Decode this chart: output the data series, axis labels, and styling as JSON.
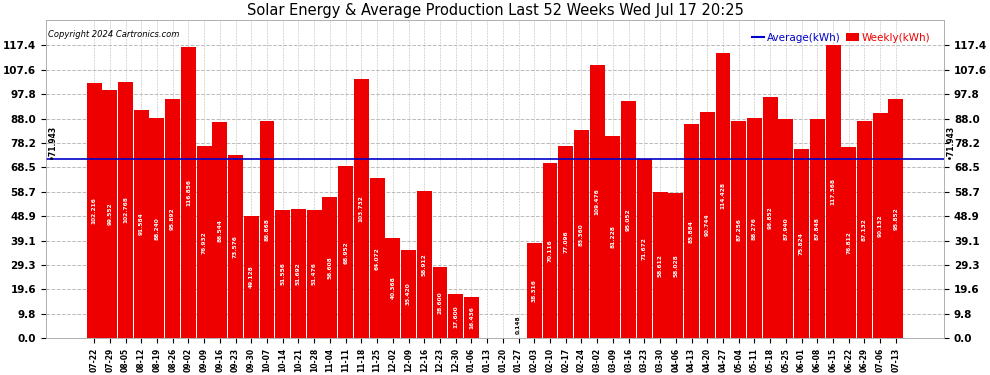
{
  "title": "Solar Energy & Average Production Last 52 Weeks Wed Jul 17 20:25",
  "copyright": "Copyright 2024 Cartronics.com",
  "average_label": "Average(kWh)",
  "weekly_label": "Weekly(kWh)",
  "average_value": 71.943,
  "bar_color": "#ee0000",
  "average_line_color": "#0000cc",
  "background_color": "#ffffff",
  "grid_color": "#bbbbbb",
  "ylim": [
    0,
    127.4
  ],
  "yticks": [
    0.0,
    9.8,
    19.6,
    29.3,
    39.1,
    48.9,
    58.7,
    68.5,
    78.2,
    88.0,
    97.8,
    107.6,
    117.4
  ],
  "categories": [
    "07-22",
    "07-29",
    "08-05",
    "08-12",
    "08-19",
    "08-26",
    "09-02",
    "09-09",
    "09-16",
    "09-23",
    "09-30",
    "10-07",
    "10-14",
    "10-21",
    "10-28",
    "11-04",
    "11-11",
    "11-18",
    "11-25",
    "12-02",
    "12-09",
    "12-16",
    "12-23",
    "12-30",
    "01-06",
    "01-13",
    "01-20",
    "01-27",
    "02-03",
    "02-10",
    "02-17",
    "02-24",
    "03-02",
    "03-09",
    "03-16",
    "03-23",
    "03-30",
    "04-06",
    "04-13",
    "04-20",
    "04-27",
    "05-04",
    "05-11",
    "05-18",
    "05-25",
    "06-01",
    "06-08",
    "06-15",
    "06-22",
    "06-29",
    "07-06",
    "07-13"
  ],
  "values": [
    102.216,
    99.552,
    102.768,
    91.584,
    88.24,
    95.892,
    116.856,
    76.932,
    86.544,
    73.576,
    49.128,
    86.868,
    51.556,
    51.692,
    51.476,
    56.608,
    68.952,
    103.732,
    64.072,
    40.368,
    35.42,
    58.912,
    28.6,
    17.6,
    16.436,
    0.0,
    0.0,
    0.148,
    38.316,
    70.116,
    77.096,
    83.36,
    109.476,
    81.228,
    95.052,
    71.672,
    58.612,
    58.028,
    85.884,
    90.744,
    114.428,
    87.256,
    88.276,
    96.852,
    87.94,
    75.824,
    87.848,
    117.368,
    76.812,
    87.132,
    90.132,
    95.852
  ]
}
